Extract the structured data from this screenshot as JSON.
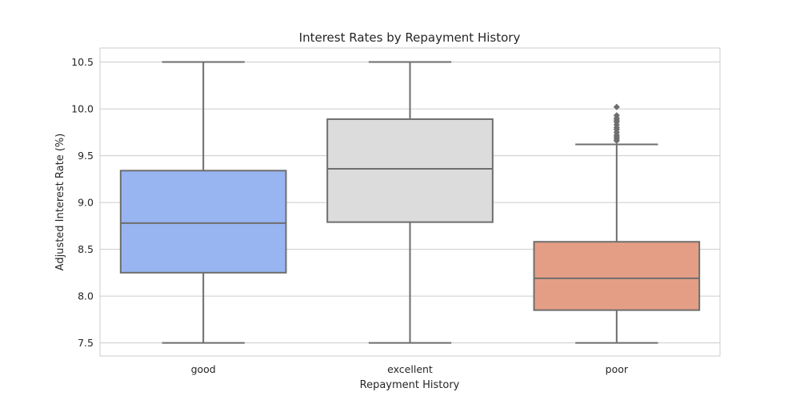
{
  "chart_data": {
    "type": "box",
    "title": "Interest Rates by Repayment History",
    "xlabel": "Repayment History",
    "ylabel": "Adjusted Interest Rate (%)",
    "ylim": [
      7.36,
      10.65
    ],
    "yticks": [
      7.5,
      8.0,
      8.5,
      9.0,
      9.5,
      10.0,
      10.5
    ],
    "grid": "horizontal",
    "categories": [
      "good",
      "excellent",
      "poor"
    ],
    "boxes": [
      {
        "category": "good",
        "color": "#98b5f2",
        "whisker_low": 7.5,
        "q1": 8.25,
        "median": 8.78,
        "q3": 9.34,
        "whisker_high": 10.5,
        "outliers": []
      },
      {
        "category": "excellent",
        "color": "#dcdcdc",
        "whisker_low": 7.5,
        "q1": 8.79,
        "median": 9.36,
        "q3": 9.89,
        "whisker_high": 10.5,
        "outliers": []
      },
      {
        "category": "poor",
        "color": "#e59e86",
        "whisker_low": 7.5,
        "q1": 7.85,
        "median": 8.19,
        "q3": 8.58,
        "whisker_high": 9.62,
        "outliers": [
          9.66,
          9.68,
          9.7,
          9.72,
          9.75,
          9.78,
          9.8,
          9.83,
          9.86,
          9.88,
          9.9,
          9.93,
          10.02
        ]
      }
    ]
  }
}
